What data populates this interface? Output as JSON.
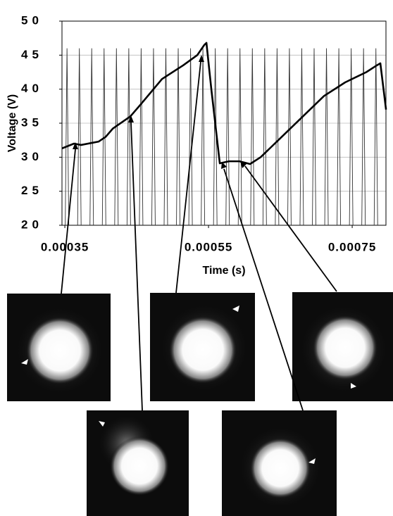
{
  "chart_data": {
    "type": "line",
    "x_label": "Time (s)",
    "y_label": "Voltage (V)",
    "xlim": [
      0.000346,
      0.000797
    ],
    "xticks": [
      0.00035,
      0.00055,
      0.00075
    ],
    "ylim": [
      20,
      50
    ],
    "yticks": [
      20,
      25,
      30,
      35,
      40,
      45,
      50
    ],
    "grid": true,
    "series": [
      {
        "color": "#000000",
        "mark": "line",
        "x": [
          0.0003461,
          0.0003627,
          0.0003725,
          0.0003971,
          0.0004069,
          0.0004167,
          0.0004412,
          0.0004559,
          0.0004853,
          0.0005147,
          0.0005343,
          0.0005441,
          0.0005471,
          0.0005539,
          0.0005657,
          0.0005784,
          0.0005931,
          0.0006078,
          0.0006225,
          0.000652,
          0.0006814,
          0.0007108,
          0.0007402,
          0.0007696,
          0.0007843,
          0.0007892,
          0.0007971
        ],
        "values": [
          31.3,
          32,
          31.8,
          32.3,
          33,
          34.2,
          36,
          37.8,
          41.5,
          43.5,
          45,
          46.5,
          46.8,
          40,
          29.1,
          29.4,
          29.4,
          29,
          30,
          33,
          36,
          39,
          41,
          42.5,
          43.5,
          43.8,
          37
        ]
      },
      {
        "color": "#333333",
        "mark": "spike",
        "x": [
          0.000353,
          0.0003702,
          0.0003874,
          0.0004046,
          0.0004218,
          0.000439,
          0.0004562,
          0.0004734,
          0.0004906,
          0.0005078,
          0.000525,
          0.0005422,
          0.0005594,
          0.0005766,
          0.0005938,
          0.000611,
          0.0006282,
          0.0006454,
          0.0006626,
          0.0006798,
          0.000697,
          0.0007142,
          0.0007314,
          0.0007486,
          0.0007658,
          0.000783
        ],
        "values": [
          46,
          46,
          46,
          46,
          46,
          46,
          46,
          46,
          46,
          46,
          46,
          46,
          46,
          46,
          46,
          46,
          46,
          46,
          46,
          46,
          46,
          46,
          46,
          46,
          46,
          46
        ]
      }
    ]
  }
}
